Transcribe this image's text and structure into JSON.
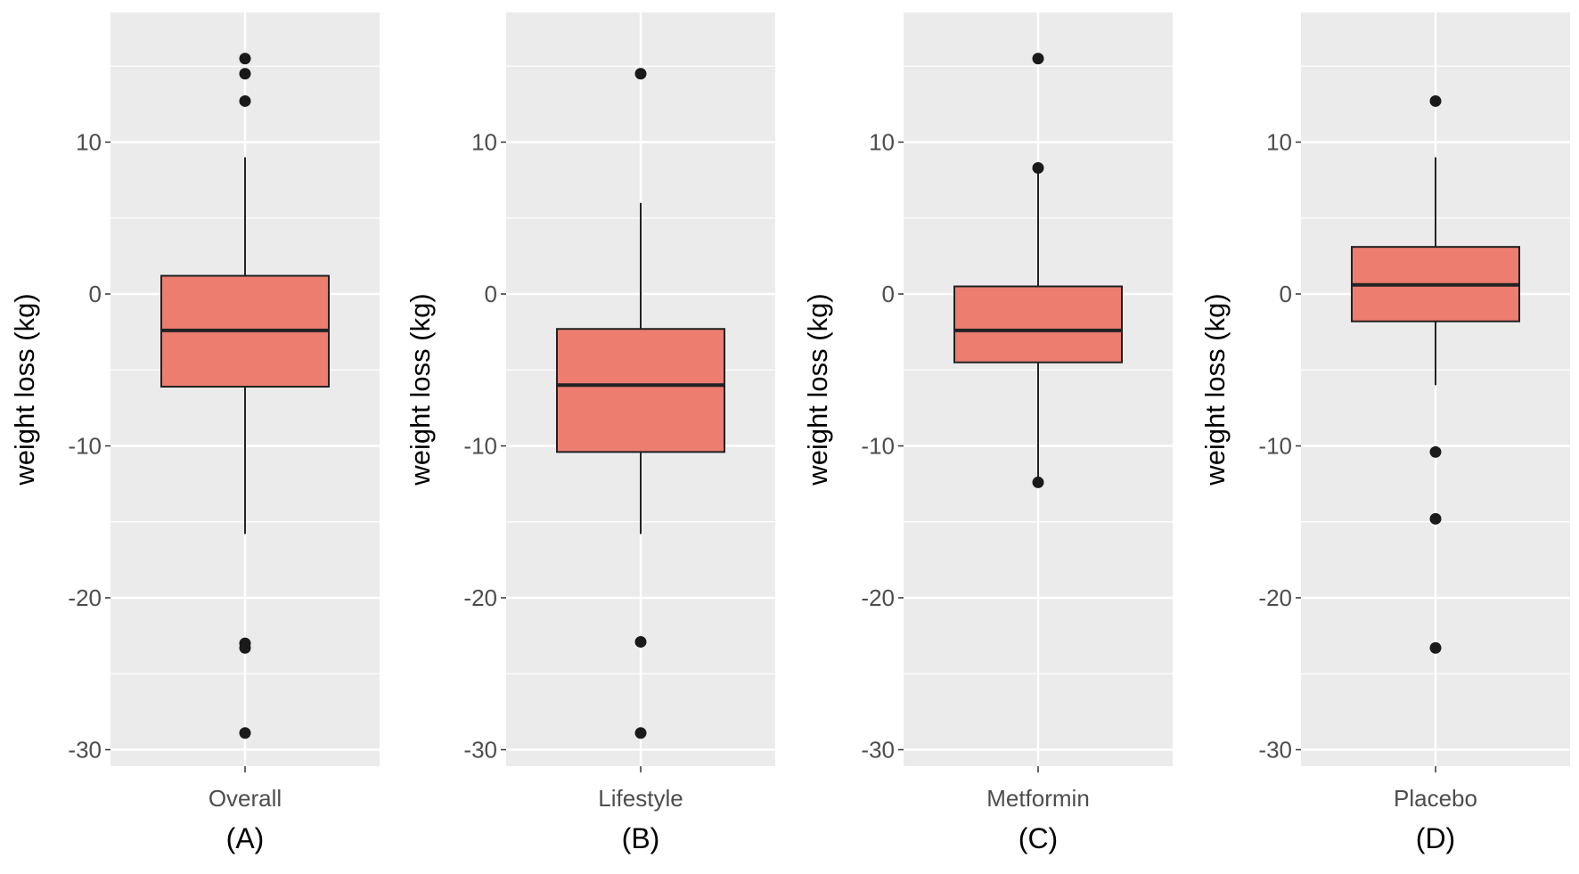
{
  "chart_data": {
    "type": "boxplot",
    "ylabel": "weight loss (kg)",
    "ylim": [
      -31,
      18
    ],
    "yticks": [
      10,
      0,
      -10,
      -20,
      -30
    ],
    "minor_gridlines": [
      15,
      5,
      -5,
      -15,
      -25
    ],
    "colors": {
      "panel_background": "#ebebeb",
      "gridline": "#ffffff",
      "box_fill": "#ec7d6f",
      "box_stroke": "#222222",
      "outlier": "#1a1a1a",
      "tick_text": "#4d4d4d",
      "label_text": "#000000"
    },
    "panels": [
      {
        "id": "A",
        "category": "Overall",
        "caption": "(A)",
        "q1": -6.1,
        "median": -2.4,
        "q3": 1.2,
        "whisker_low": -15.8,
        "whisker_high": 9.0,
        "outliers": [
          15.5,
          14.5,
          12.7,
          -23.0,
          -23.3,
          -28.9
        ]
      },
      {
        "id": "B",
        "category": "Lifestyle",
        "caption": "(B)",
        "q1": -10.4,
        "median": -6.0,
        "q3": -2.3,
        "whisker_low": -15.8,
        "whisker_high": 6.0,
        "outliers": [
          14.5,
          -22.9,
          -28.9
        ]
      },
      {
        "id": "C",
        "category": "Metformin",
        "caption": "(C)",
        "q1": -4.5,
        "median": -2.4,
        "q3": 0.5,
        "whisker_low": -12.4,
        "whisker_high": 8.3,
        "outliers": [
          15.5,
          8.3,
          -12.4
        ]
      },
      {
        "id": "D",
        "category": "Placebo",
        "caption": "(D)",
        "q1": -1.8,
        "median": 0.6,
        "q3": 3.1,
        "whisker_low": -6.0,
        "whisker_high": 9.0,
        "outliers": [
          12.7,
          -10.4,
          -14.8,
          -23.3
        ]
      }
    ]
  }
}
